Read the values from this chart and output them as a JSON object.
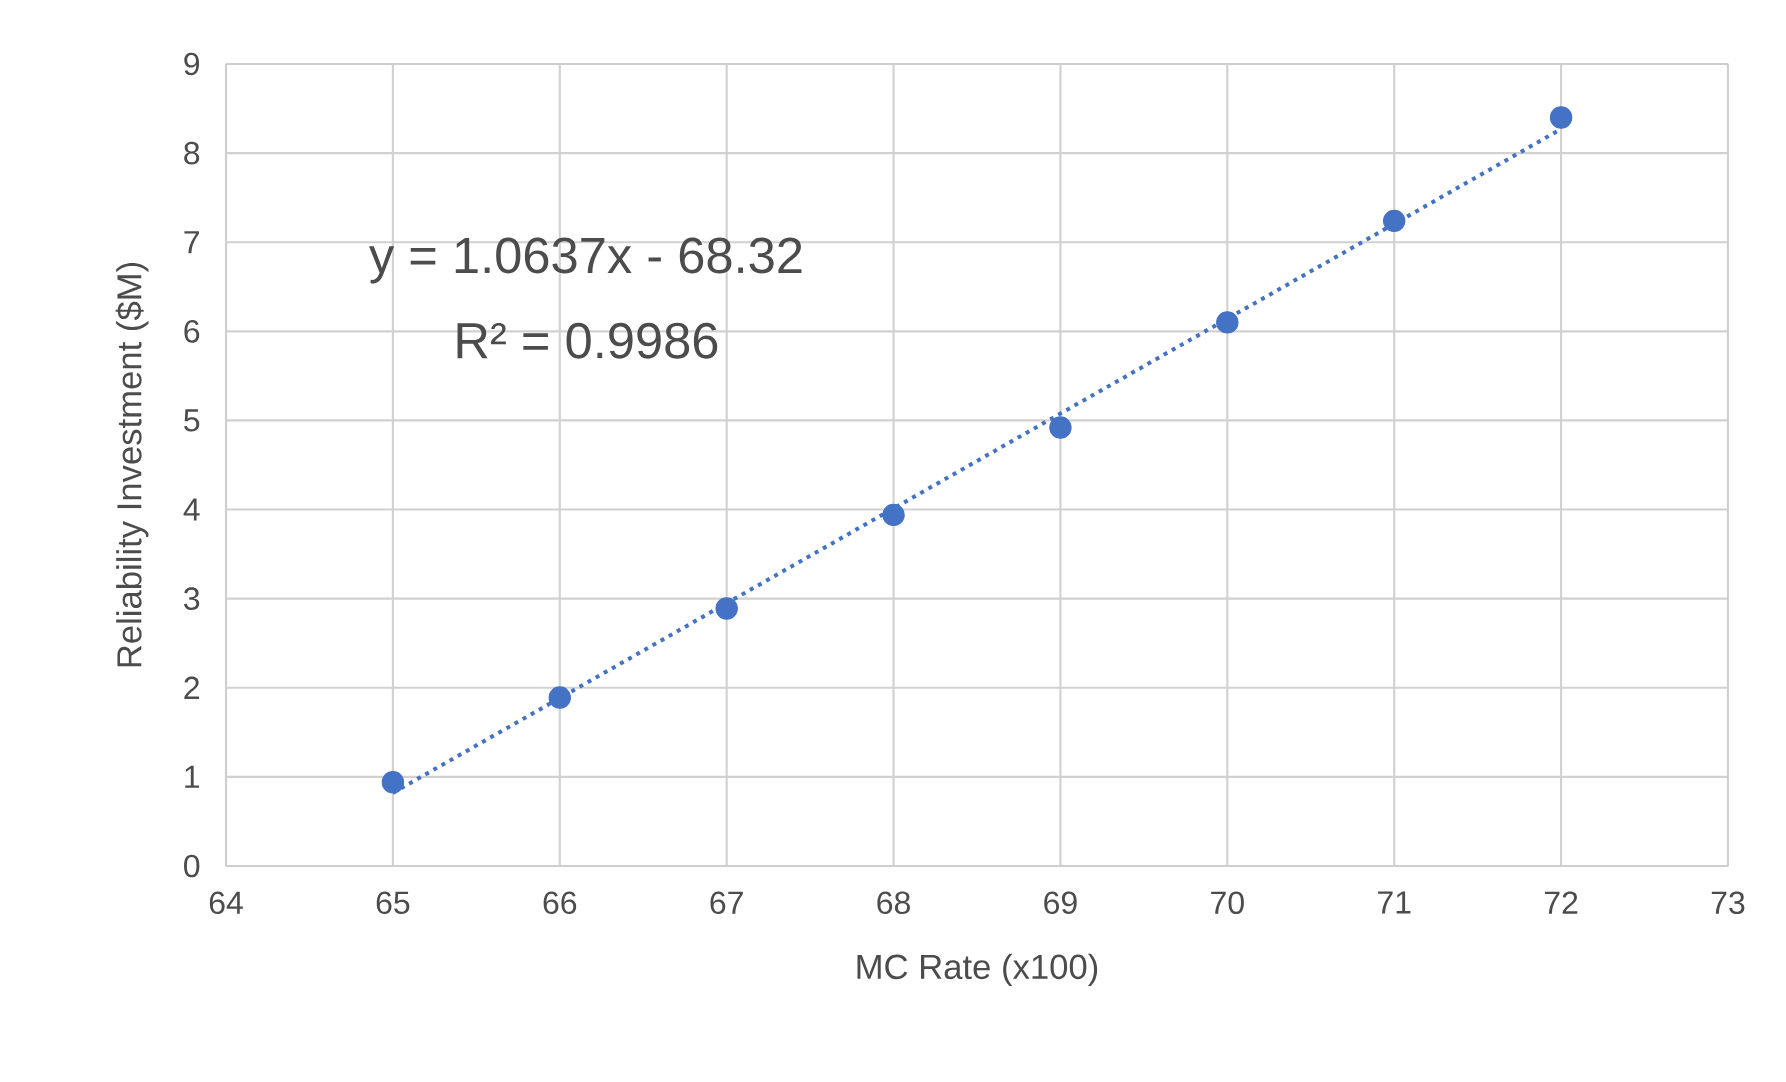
{
  "chart_data": {
    "type": "scatter",
    "xlabel": "MC Rate (x100)",
    "ylabel": "Reliability Investment ($M)",
    "x": [
      65,
      66,
      67,
      68,
      69,
      70,
      71,
      72
    ],
    "series": [
      {
        "color": "#4472c4",
        "marker": "circle",
        "values": [
          0.94,
          1.89,
          2.89,
          3.94,
          4.92,
          6.1,
          7.24,
          8.4
        ]
      },
      {
        "type": "line",
        "color": "#4472c4",
        "line_style": "dotted",
        "marker": "none",
        "x": [
          65,
          72
        ],
        "values": [
          0.82,
          8.27
        ]
      }
    ],
    "annotations": [
      "y = 1.0637x - 68.32",
      "R² = 0.9986"
    ],
    "xlim": [
      64,
      73
    ],
    "xticks": [
      64,
      65,
      66,
      67,
      68,
      69,
      70,
      71,
      72,
      73
    ],
    "ylim": [
      0,
      9
    ],
    "yticks": [
      0,
      1,
      2,
      3,
      4,
      5,
      6,
      7,
      8,
      9
    ],
    "grid": true
  }
}
